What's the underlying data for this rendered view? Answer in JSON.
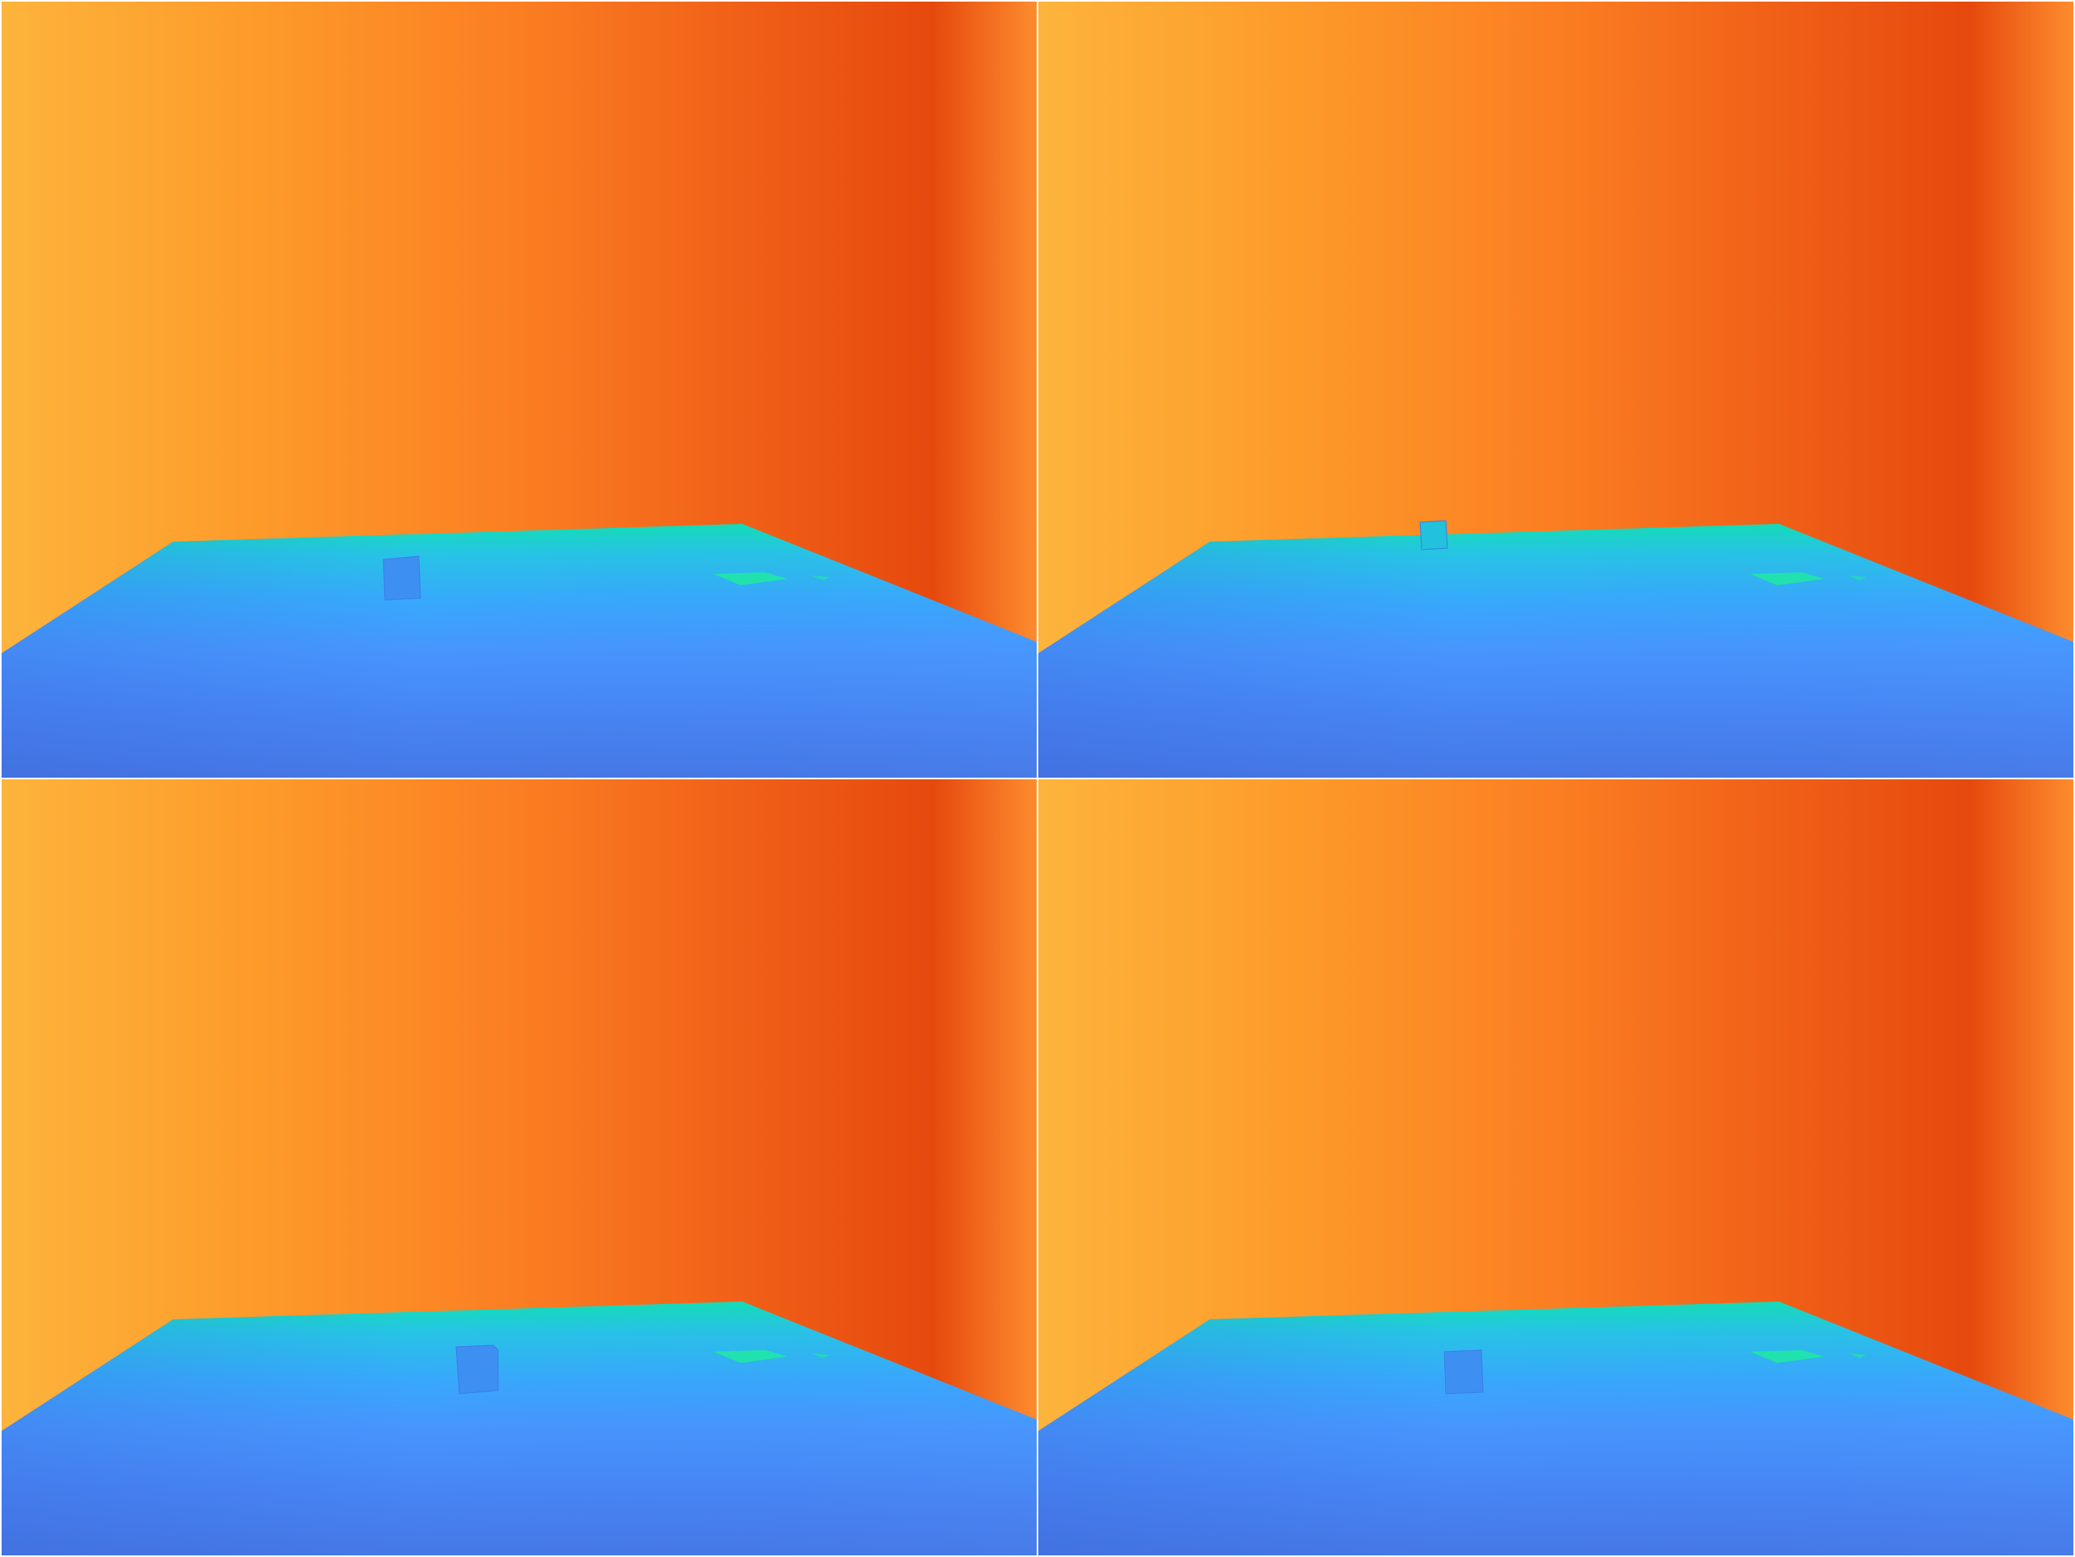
{
  "figure": {
    "kind": "2x2 grid of rendered depth maps",
    "panel_count": 4
  },
  "colors": {
    "wall_gradient": [
      "#fdb43c",
      "#fd9a2a",
      "#fb7e22",
      "#f05f17",
      "#e6490d",
      "#fd8c2e"
    ],
    "floor_gradient": [
      "#12e0b4",
      "#27c4e6",
      "#37a9fb",
      "#4795fe",
      "#4785f4",
      "#4678e6"
    ],
    "block_color": "#3d8ff2",
    "block_far_color": "#22c1dc",
    "marker_color": "#1fe7a6",
    "divider": "#ffffff"
  },
  "panels": [
    {
      "id": "top-left",
      "block_depth": "mid"
    },
    {
      "id": "top-right",
      "block_depth": "far"
    },
    {
      "id": "bottom-left",
      "block_depth": "mid"
    },
    {
      "id": "bottom-right",
      "block_depth": "mid"
    }
  ]
}
